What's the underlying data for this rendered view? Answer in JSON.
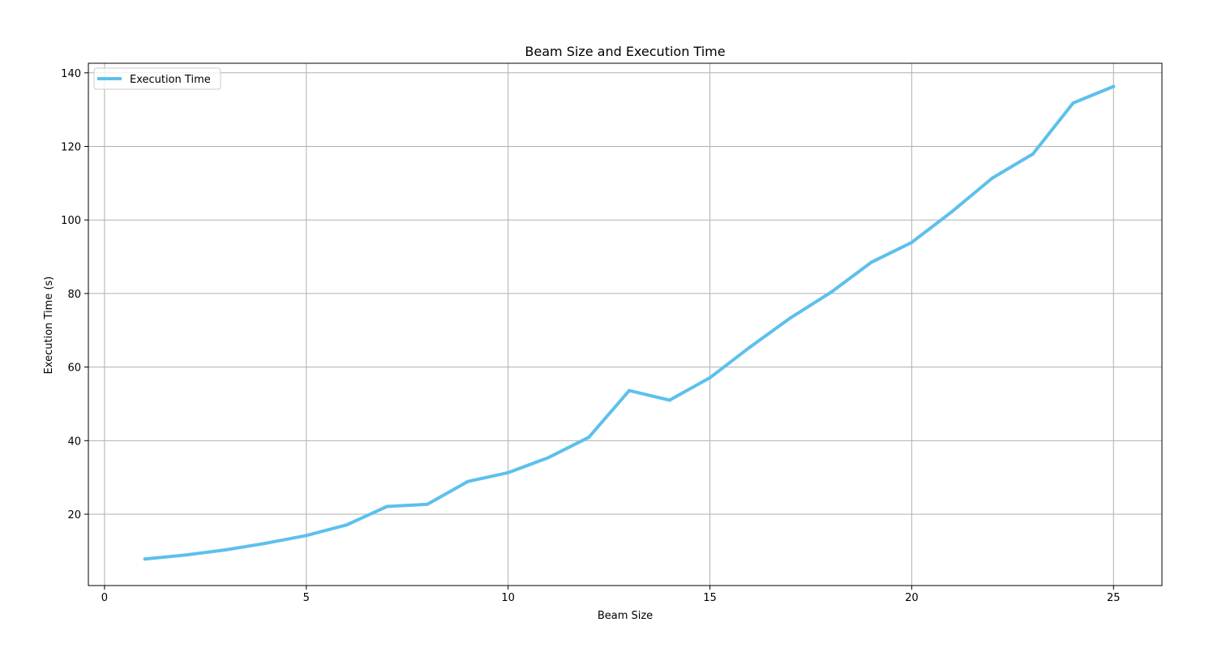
{
  "chart_data": {
    "type": "line",
    "title": "Beam Size and Execution Time",
    "xlabel": "Beam Size",
    "ylabel": "Execution Time (s)",
    "xlim": [
      -0.4,
      26.2
    ],
    "ylim": [
      0.6,
      142.6
    ],
    "xticks": [
      0,
      5,
      10,
      15,
      20,
      25
    ],
    "yticks": [
      20,
      40,
      60,
      80,
      100,
      120,
      140
    ],
    "grid": true,
    "legend_position": "top-left",
    "series": [
      {
        "name": "Execution Time",
        "color": "#5dc0ec",
        "x": [
          1,
          2,
          3,
          4,
          5,
          6,
          7,
          8,
          9,
          10,
          11,
          12,
          13,
          14,
          15,
          16,
          17,
          18,
          19,
          20,
          21,
          22,
          23,
          24,
          25
        ],
        "y": [
          7.8,
          8.9,
          10.3,
          12.1,
          14.2,
          17.1,
          22.1,
          22.7,
          28.9,
          31.3,
          35.4,
          40.9,
          53.6,
          51.0,
          57.1,
          65.5,
          73.4,
          80.3,
          88.5,
          93.9,
          102.3,
          111.4,
          117.9,
          131.8,
          136.3
        ]
      }
    ]
  }
}
